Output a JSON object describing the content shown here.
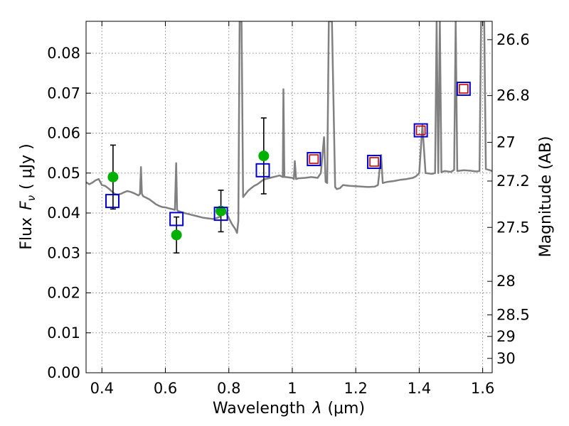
{
  "chart_data": {
    "type": "scatter",
    "xlabel": "Wavelength  λ (μm)",
    "ylabel": "Flux  F_ν  ( μJy )",
    "ylabel_parts": [
      "Flux",
      "F",
      "ν",
      "( μJy )"
    ],
    "xlabel_parts": [
      "Wavelength",
      "λ",
      "(μm)"
    ],
    "y2label": "Magnitude (AB)",
    "xlim": [
      0.35,
      1.63
    ],
    "ylim": [
      0.0,
      0.088
    ],
    "grid": true,
    "x_ticks": [
      0.4,
      0.6,
      0.8,
      1.0,
      1.2,
      1.4,
      1.6
    ],
    "x_tick_labels": [
      "0.4",
      "0.6",
      "0.8",
      "1",
      "1.2",
      "1.4",
      "1.6"
    ],
    "y_ticks": [
      0.0,
      0.01,
      0.02,
      0.03,
      0.04,
      0.05,
      0.06,
      0.07,
      0.08
    ],
    "y_tick_labels": [
      "0.00",
      "0.01",
      "0.02",
      "0.03",
      "0.04",
      "0.05",
      "0.06",
      "0.07",
      "0.08"
    ],
    "y2_ticks": [
      {
        "label": "26.6",
        "flux": 0.0834
      },
      {
        "label": "26.8",
        "flux": 0.0694
      },
      {
        "label": "27",
        "flux": 0.0577
      },
      {
        "label": "27.2",
        "flux": 0.048
      },
      {
        "label": "27.5",
        "flux": 0.0364
      },
      {
        "label": "28",
        "flux": 0.0229
      },
      {
        "label": "28.5",
        "flux": 0.0145
      },
      {
        "label": "29",
        "flux": 0.0091
      },
      {
        "label": "30",
        "flux": 0.0036
      }
    ],
    "colors": {
      "spectrum": "#808080",
      "observed": "#00b000",
      "model_box": "#0000cc",
      "prediction_box": "#cc0000",
      "errorbar": "#000000",
      "grid": "#888888"
    },
    "series": [
      {
        "kind": "line",
        "points": [
          [
            0.35,
            0.0477
          ],
          [
            0.36,
            0.0472
          ],
          [
            0.37,
            0.0476
          ],
          [
            0.38,
            0.0482
          ],
          [
            0.39,
            0.0485
          ],
          [
            0.4,
            0.047
          ],
          [
            0.41,
            0.0468
          ],
          [
            0.42,
            0.0462
          ],
          [
            0.43,
            0.0455
          ],
          [
            0.44,
            0.0448
          ],
          [
            0.45,
            0.0446
          ],
          [
            0.46,
            0.0448
          ],
          [
            0.47,
            0.0452
          ],
          [
            0.48,
            0.0455
          ],
          [
            0.49,
            0.0453
          ],
          [
            0.5,
            0.045
          ],
          [
            0.51,
            0.0446
          ],
          [
            0.515,
            0.0444
          ],
          [
            0.52,
            0.0448
          ],
          [
            0.523,
            0.0515
          ],
          [
            0.526,
            0.0448
          ],
          [
            0.53,
            0.0442
          ],
          [
            0.54,
            0.0438
          ],
          [
            0.55,
            0.0434
          ],
          [
            0.56,
            0.0428
          ],
          [
            0.57,
            0.0422
          ],
          [
            0.58,
            0.0418
          ],
          [
            0.59,
            0.0415
          ],
          [
            0.6,
            0.0414
          ],
          [
            0.61,
            0.0412
          ],
          [
            0.62,
            0.041
          ],
          [
            0.63,
            0.0408
          ],
          [
            0.634,
            0.0525
          ],
          [
            0.637,
            0.0408
          ],
          [
            0.64,
            0.0405
          ],
          [
            0.66,
            0.04
          ],
          [
            0.68,
            0.0396
          ],
          [
            0.7,
            0.0392
          ],
          [
            0.72,
            0.0388
          ],
          [
            0.74,
            0.0386
          ],
          [
            0.75,
            0.0385
          ],
          [
            0.76,
            0.0387
          ],
          [
            0.77,
            0.039
          ],
          [
            0.78,
            0.0398
          ],
          [
            0.79,
            0.0402
          ],
          [
            0.8,
            0.0388
          ],
          [
            0.81,
            0.0372
          ],
          [
            0.82,
            0.036
          ],
          [
            0.826,
            0.035
          ],
          [
            0.83,
            0.038
          ],
          [
            0.834,
            0.088
          ],
          [
            0.84,
            0.088
          ],
          [
            0.845,
            0.044
          ],
          [
            0.85,
            0.0445
          ],
          [
            0.86,
            0.0455
          ],
          [
            0.87,
            0.0462
          ],
          [
            0.88,
            0.0468
          ],
          [
            0.89,
            0.0472
          ],
          [
            0.9,
            0.0478
          ],
          [
            0.91,
            0.0484
          ],
          [
            0.93,
            0.0488
          ],
          [
            0.95,
            0.0492
          ],
          [
            0.96,
            0.0494
          ],
          [
            0.97,
            0.049
          ],
          [
            0.972,
            0.071
          ],
          [
            0.975,
            0.049
          ],
          [
            0.98,
            0.049
          ],
          [
            1.0,
            0.0488
          ],
          [
            1.005,
            0.0485
          ],
          [
            1.008,
            0.053
          ],
          [
            1.012,
            0.0485
          ],
          [
            1.02,
            0.0487
          ],
          [
            1.04,
            0.0488
          ],
          [
            1.06,
            0.049
          ],
          [
            1.08,
            0.0488
          ],
          [
            1.09,
            0.05
          ],
          [
            1.1,
            0.059
          ],
          [
            1.105,
            0.0478
          ],
          [
            1.11,
            0.0475
          ],
          [
            1.115,
            0.088
          ],
          [
            1.125,
            0.088
          ],
          [
            1.135,
            0.0465
          ],
          [
            1.14,
            0.046
          ],
          [
            1.15,
            0.0462
          ],
          [
            1.16,
            0.047
          ],
          [
            1.18,
            0.0468
          ],
          [
            1.2,
            0.0467
          ],
          [
            1.22,
            0.0466
          ],
          [
            1.24,
            0.0465
          ],
          [
            1.26,
            0.0466
          ],
          [
            1.27,
            0.047
          ],
          [
            1.28,
            0.0545
          ],
          [
            1.285,
            0.0475
          ],
          [
            1.3,
            0.0478
          ],
          [
            1.32,
            0.048
          ],
          [
            1.34,
            0.0483
          ],
          [
            1.36,
            0.0485
          ],
          [
            1.38,
            0.0488
          ],
          [
            1.39,
            0.0492
          ],
          [
            1.4,
            0.05
          ],
          [
            1.41,
            0.062
          ],
          [
            1.42,
            0.05
          ],
          [
            1.44,
            0.0498
          ],
          [
            1.45,
            0.05
          ],
          [
            1.455,
            0.088
          ],
          [
            1.46,
            0.05
          ],
          [
            1.465,
            0.088
          ],
          [
            1.47,
            0.0502
          ],
          [
            1.48,
            0.0505
          ],
          [
            1.5,
            0.0503
          ],
          [
            1.51,
            0.0508
          ],
          [
            1.515,
            0.088
          ],
          [
            1.52,
            0.0505
          ],
          [
            1.54,
            0.0507
          ],
          [
            1.56,
            0.0506
          ],
          [
            1.58,
            0.0504
          ],
          [
            1.59,
            0.0505
          ],
          [
            1.595,
            0.088
          ],
          [
            1.605,
            0.088
          ],
          [
            1.61,
            0.051
          ],
          [
            1.62,
            0.0508
          ],
          [
            1.63,
            0.0505
          ]
        ]
      },
      {
        "kind": "points",
        "marker": "circle",
        "points": [
          {
            "x": 0.435,
            "y": 0.049,
            "err": 0.008
          },
          {
            "x": 0.635,
            "y": 0.0345,
            "err": 0.0045
          },
          {
            "x": 0.775,
            "y": 0.0405,
            "err": 0.0052
          },
          {
            "x": 0.91,
            "y": 0.0543,
            "err": 0.0095
          }
        ]
      },
      {
        "kind": "points",
        "marker": "square",
        "points": [
          {
            "x": 0.433,
            "y": 0.043
          },
          {
            "x": 0.635,
            "y": 0.0385
          },
          {
            "x": 0.775,
            "y": 0.0398
          },
          {
            "x": 0.907,
            "y": 0.0507
          },
          {
            "x": 1.068,
            "y": 0.0535
          },
          {
            "x": 1.258,
            "y": 0.0528
          },
          {
            "x": 1.405,
            "y": 0.0607
          },
          {
            "x": 1.54,
            "y": 0.0711
          }
        ]
      },
      {
        "kind": "points",
        "marker": "small-square",
        "points": [
          {
            "x": 1.068,
            "y": 0.0535
          },
          {
            "x": 1.258,
            "y": 0.0528
          },
          {
            "x": 1.405,
            "y": 0.0607
          },
          {
            "x": 1.54,
            "y": 0.0711
          }
        ]
      }
    ]
  }
}
